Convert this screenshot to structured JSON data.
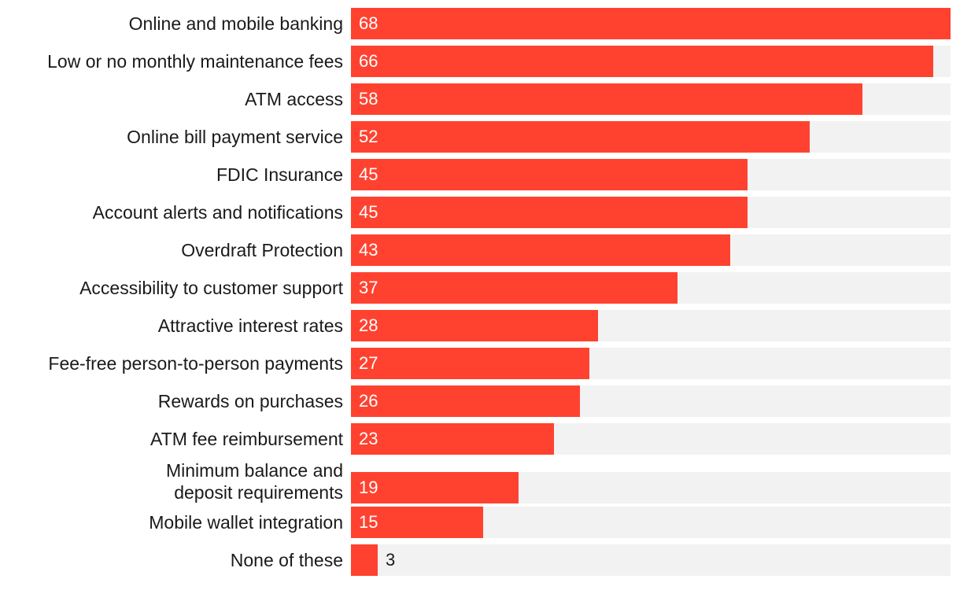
{
  "chart_data": {
    "type": "bar",
    "orientation": "horizontal",
    "categories": [
      "Online and mobile banking",
      "Low or no monthly maintenance fees",
      "ATM access",
      "Online bill payment service",
      "FDIC Insurance",
      "Account alerts and notifications",
      "Overdraft Protection",
      "Accessibility to customer support",
      "Attractive interest rates",
      "Fee-free person-to-person payments",
      "Rewards on purchases",
      "ATM fee reimbursement",
      "Minimum balance and deposit requirements",
      "Mobile wallet integration",
      "None of these"
    ],
    "values": [
      68,
      66,
      58,
      52,
      45,
      45,
      43,
      37,
      28,
      27,
      26,
      23,
      19,
      15,
      3
    ],
    "xlim": [
      0,
      68
    ],
    "grid": false,
    "legend": "none",
    "colors": {
      "bar": "#ff4230",
      "track": "#f2f2f2",
      "label": "#1a1a1a",
      "value_inside": "#ffffff",
      "value_outside": "#1a1a1a"
    }
  }
}
